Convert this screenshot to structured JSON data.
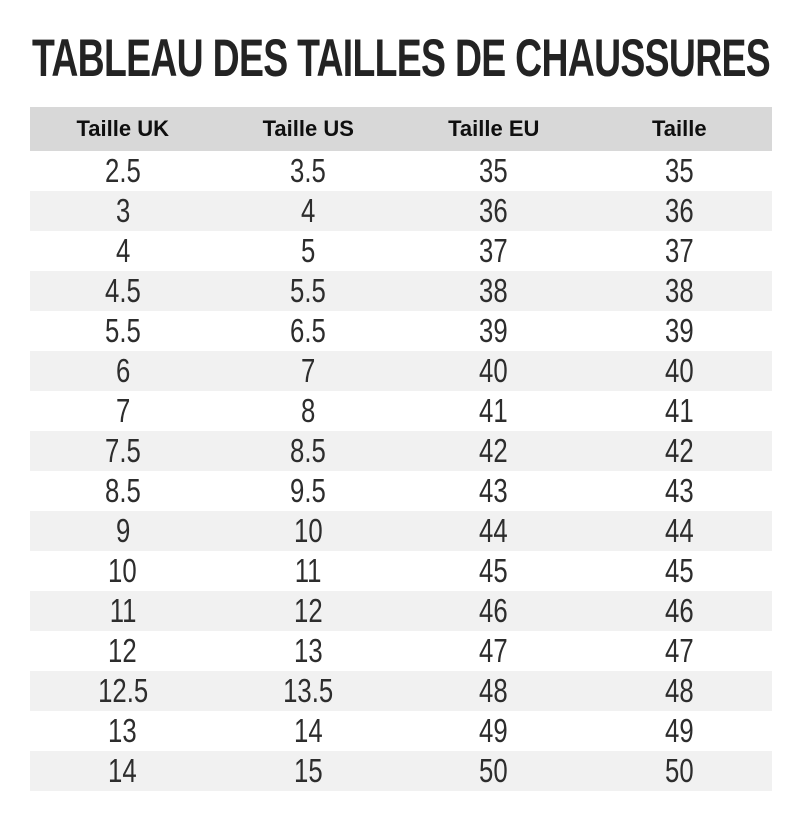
{
  "title": "TABLEAU DES TAILLES DE CHAUSSURES",
  "table": {
    "columns": [
      "Taille UK",
      "Taille US",
      "Taille EU",
      "Taille"
    ],
    "rows": [
      [
        "2.5",
        "3.5",
        "35",
        "35"
      ],
      [
        "3",
        "4",
        "36",
        "36"
      ],
      [
        "4",
        "5",
        "37",
        "37"
      ],
      [
        "4.5",
        "5.5",
        "38",
        "38"
      ],
      [
        "5.5",
        "6.5",
        "39",
        "39"
      ],
      [
        "6",
        "7",
        "40",
        "40"
      ],
      [
        "7",
        "8",
        "41",
        "41"
      ],
      [
        "7.5",
        "8.5",
        "42",
        "42"
      ],
      [
        "8.5",
        "9.5",
        "43",
        "43"
      ],
      [
        "9",
        "10",
        "44",
        "44"
      ],
      [
        "10",
        "11",
        "45",
        "45"
      ],
      [
        "11",
        "12",
        "46",
        "46"
      ],
      [
        "12",
        "13",
        "47",
        "47"
      ],
      [
        "12.5",
        "13.5",
        "48",
        "48"
      ],
      [
        "13",
        "14",
        "49",
        "49"
      ],
      [
        "14",
        "15",
        "50",
        "50"
      ]
    ]
  },
  "colors": {
    "title_text": "#232323",
    "header_bg": "#d8d8d8",
    "header_text": "#0f0f0f",
    "stripe_bg": "#f1f1f1",
    "row_bg": "#ffffff",
    "cell_text": "#2d2d2d"
  }
}
